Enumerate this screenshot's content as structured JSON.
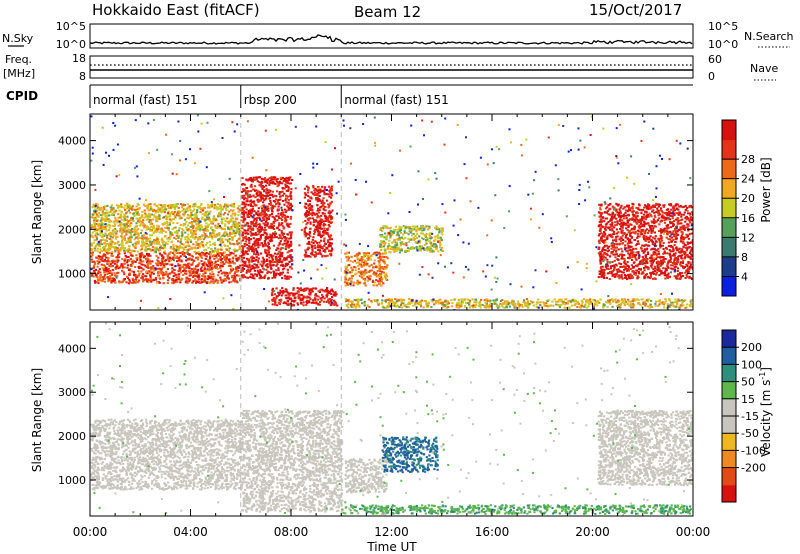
{
  "header": {
    "station": "Hokkaido East (fitACF)",
    "beam": "Beam 12",
    "date": "15/Oct/2017"
  },
  "left_labels": {
    "nsky": "N.Sky",
    "freq_line1": "Freq.",
    "freq_line2": "[MHz]",
    "cpid": "CPID"
  },
  "right_labels": {
    "nsearch": "N.Search",
    "nave": "Nave"
  },
  "noise_axis": {
    "left_ticks": [
      "10^5",
      "10^0"
    ],
    "right_ticks": [
      "10^5",
      "10^0"
    ]
  },
  "freq_axis": {
    "left_ticks": [
      "18",
      "8"
    ],
    "right_ticks": [
      "60",
      "0"
    ]
  },
  "cpid_segments": [
    {
      "label": "normal (fast) 151",
      "start_hour": 0,
      "end_hour": 6
    },
    {
      "label": "rbsp 200",
      "start_hour": 6,
      "end_hour": 10
    },
    {
      "label": "normal (fast) 151",
      "start_hour": 10,
      "end_hour": 24
    }
  ],
  "time_axis": {
    "label": "Time UT",
    "ticks": [
      "00:00",
      "04:00",
      "08:00",
      "12:00",
      "16:00",
      "20:00",
      "00:00"
    ],
    "tick_hours": [
      0,
      4,
      8,
      12,
      16,
      20,
      24
    ]
  },
  "range_axis": {
    "label": "Slant Range [km]",
    "ticks": [
      "1000",
      "2000",
      "3000",
      "4000"
    ],
    "tick_values": [
      1000,
      2000,
      3000,
      4000
    ],
    "ylim": [
      180,
      4600
    ]
  },
  "power_colorbar": {
    "label": "Power [dB]",
    "ticks": [
      "4",
      "8",
      "12",
      "16",
      "20",
      "24",
      "28"
    ],
    "colors": [
      "#0b1fe0",
      "#1e3c8c",
      "#3b7a6e",
      "#55a05a",
      "#c6cc22",
      "#f0a820",
      "#ee6a18",
      "#e63216",
      "#d81010"
    ]
  },
  "velocity_colorbar": {
    "label": "Velocity [m s",
    "label_superscript": "-1",
    "ticks": [
      "200",
      "100",
      "50",
      "15",
      "-15",
      "-50",
      "-100",
      "-200"
    ],
    "colors": [
      "#1a2a9c",
      "#1f5ea0",
      "#2f8f7e",
      "#5cb84a",
      "#c8c6bc",
      "#c8c6bc",
      "#f0b820",
      "#ef8a20",
      "#e44a16",
      "#d81010"
    ]
  },
  "chart_data": {
    "type": "heatmap",
    "x_unit": "hour UT",
    "xlim": [
      0,
      24
    ],
    "panels": [
      {
        "name": "Power",
        "regions": [
          {
            "x": [
              0,
              6
            ],
            "y": [
              800,
              1500
            ],
            "value": 24
          },
          {
            "x": [
              0,
              6
            ],
            "y": [
              1500,
              2600
            ],
            "value": 16
          },
          {
            "x": [
              6,
              8
            ],
            "y": [
              900,
              3200
            ],
            "value": 28
          },
          {
            "x": [
              7.2,
              9.8
            ],
            "y": [
              300,
              700
            ],
            "value": 28
          },
          {
            "x": [
              8.5,
              9.6
            ],
            "y": [
              1400,
              3000
            ],
            "value": 28
          },
          {
            "x": [
              10.1,
              11.8
            ],
            "y": [
              750,
              1500
            ],
            "value": 20
          },
          {
            "x": [
              11.5,
              14
            ],
            "y": [
              1500,
              2100
            ],
            "value": 14
          },
          {
            "x": [
              10,
              24
            ],
            "y": [
              250,
              450
            ],
            "value": 16
          },
          {
            "x": [
              20.2,
              24
            ],
            "y": [
              900,
              2600
            ],
            "value": 28
          }
        ]
      },
      {
        "name": "Velocity",
        "regions": [
          {
            "x": [
              0,
              6
            ],
            "y": [
              800,
              2400
            ],
            "value": 0
          },
          {
            "x": [
              6,
              10
            ],
            "y": [
              300,
              2600
            ],
            "value": 0
          },
          {
            "x": [
              10.1,
              11.8
            ],
            "y": [
              750,
              1500
            ],
            "value": 0
          },
          {
            "x": [
              11.6,
              13.8
            ],
            "y": [
              1200,
              2000
            ],
            "value": 80
          },
          {
            "x": [
              10,
              24
            ],
            "y": [
              250,
              450
            ],
            "value": 30
          },
          {
            "x": [
              20.2,
              24
            ],
            "y": [
              900,
              2600
            ],
            "value": 0
          }
        ]
      }
    ]
  }
}
